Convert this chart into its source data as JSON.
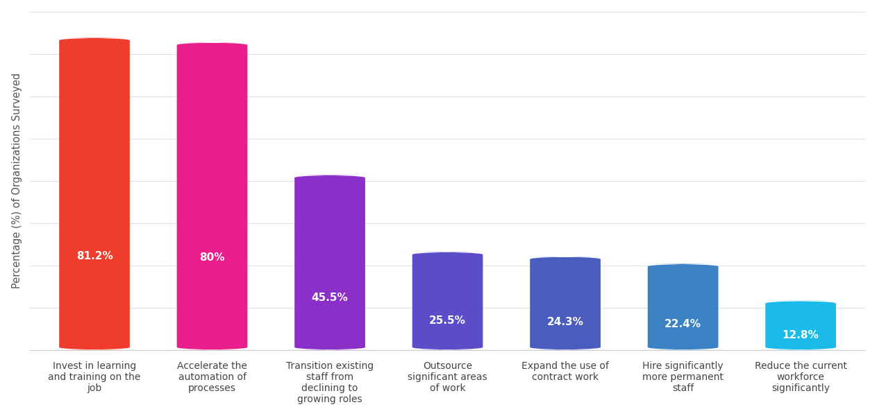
{
  "categories": [
    "Invest in learning\nand training on the\njob",
    "Accelerate the\nautomation of\nprocesses",
    "Transition existing\nstaff from\ndeclining to\ngrowing roles",
    "Outsource\nsignificant areas\nof work",
    "Expand the use of\ncontract work",
    "Hire significantly\nmore permanent\nstaff",
    "Reduce the current\nworkforce\nsignificantly"
  ],
  "values": [
    81.2,
    80.0,
    45.5,
    25.5,
    24.3,
    22.4,
    12.8
  ],
  "labels": [
    "81.2%",
    "80%",
    "45.5%",
    "25.5%",
    "24.3%",
    "22.4%",
    "12.8%"
  ],
  "bar_colors": [
    "#EF3C2D",
    "#E91E8C",
    "#8B2FC9",
    "#5B4DC8",
    "#4A5DBF",
    "#3A82C4",
    "#1ABBE8"
  ],
  "ylabel": "Percentage (%) of Organizations Surveyed",
  "background_color": "#FFFFFF",
  "ylim": [
    0,
    88
  ],
  "grid_color": "#E0E0E0",
  "label_fontsize": 10,
  "value_fontsize": 11,
  "ylabel_fontsize": 10.5,
  "xtick_color": "#444444",
  "bar_width": 0.6,
  "rounding_size": 0.7,
  "num_hlines": 9
}
